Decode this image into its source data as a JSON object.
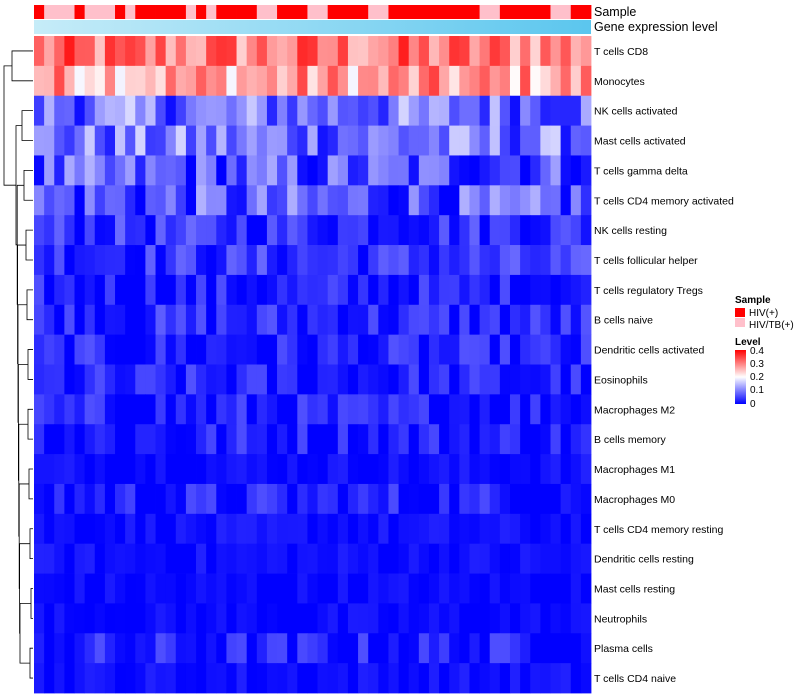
{
  "chart_data": {
    "type": "heatmap",
    "title": "",
    "annotation_tracks": [
      "Sample",
      "Gene expression level"
    ],
    "sample_annotation": [
      "HIV(+)",
      "HIV/TB(+)",
      "HIV/TB(+)",
      "HIV/TB(+)",
      "HIV(+)",
      "HIV/TB(+)",
      "HIV/TB(+)",
      "HIV/TB(+)",
      "HIV(+)",
      "HIV/TB(+)",
      "HIV(+)",
      "HIV(+)",
      "HIV(+)",
      "HIV(+)",
      "HIV(+)",
      "HIV/TB(+)",
      "HIV(+)",
      "HIV/TB(+)",
      "HIV(+)",
      "HIV(+)",
      "HIV(+)",
      "HIV(+)",
      "HIV/TB(+)",
      "HIV/TB(+)",
      "HIV(+)",
      "HIV(+)",
      "HIV(+)",
      "HIV/TB(+)",
      "HIV/TB(+)",
      "HIV(+)",
      "HIV(+)",
      "HIV(+)",
      "HIV(+)",
      "HIV/TB(+)",
      "HIV/TB(+)",
      "HIV(+)",
      "HIV(+)",
      "HIV(+)",
      "HIV(+)",
      "HIV(+)",
      "HIV(+)",
      "HIV(+)",
      "HIV(+)",
      "HIV(+)",
      "HIV/TB(+)",
      "HIV/TB(+)",
      "HIV(+)",
      "HIV(+)",
      "HIV(+)",
      "HIV(+)",
      "HIV(+)",
      "HIV/TB(+)",
      "HIV/TB(+)",
      "HIV(+)",
      "HIV(+)"
    ],
    "rows": [
      "T cells CD8",
      "Monocytes",
      "NK cells activated",
      "Mast cells activated",
      "T cells gamma delta",
      "T cells CD4 memory activated",
      "NK cells resting",
      "T cells follicular helper",
      "T cells regulatory  Tregs",
      "B cells naive",
      "Dendritic cells activated",
      "Eosinophils",
      "Macrophages M2",
      "B cells memory",
      "Macrophages M1",
      "Macrophages M0",
      "T cells CD4 memory resting",
      "Dendritic cells resting",
      "Mast cells resting",
      "Neutrophils",
      "Plasma cells",
      "T cells CD4 naive"
    ],
    "row_mean_level": [
      0.3,
      0.27,
      0.09,
      0.09,
      0.06,
      0.06,
      0.04,
      0.04,
      0.02,
      0.03,
      0.02,
      0.02,
      0.02,
      0.02,
      0.01,
      0.02,
      0.01,
      0.01,
      0.005,
      0.005,
      0.02,
      0.01
    ],
    "n_samples": 55,
    "color_scale": {
      "name": "Level",
      "min": 0,
      "mid": 0.2,
      "max": 0.4,
      "ticks": [
        0,
        0.1,
        0.2,
        0.3,
        0.4
      ],
      "low_color": "#0000ff",
      "mid_color": "#ffffff",
      "high_color": "#ff0000"
    },
    "legend": {
      "sample_title": "Sample",
      "sample_entries": [
        {
          "label": "HIV(+)",
          "color": "#ff0000"
        },
        {
          "label": "HIV/TB(+)",
          "color": "#ffc0cb"
        }
      ],
      "level_title": "Level",
      "level_tick_labels": [
        "0.4",
        "0.3",
        "0.2",
        "0.1",
        "0"
      ]
    },
    "expression_bar_colors": [
      "#c6ecf8",
      "#5bc6ee"
    ],
    "dendrogram": "rows clustered (hierarchical)"
  }
}
